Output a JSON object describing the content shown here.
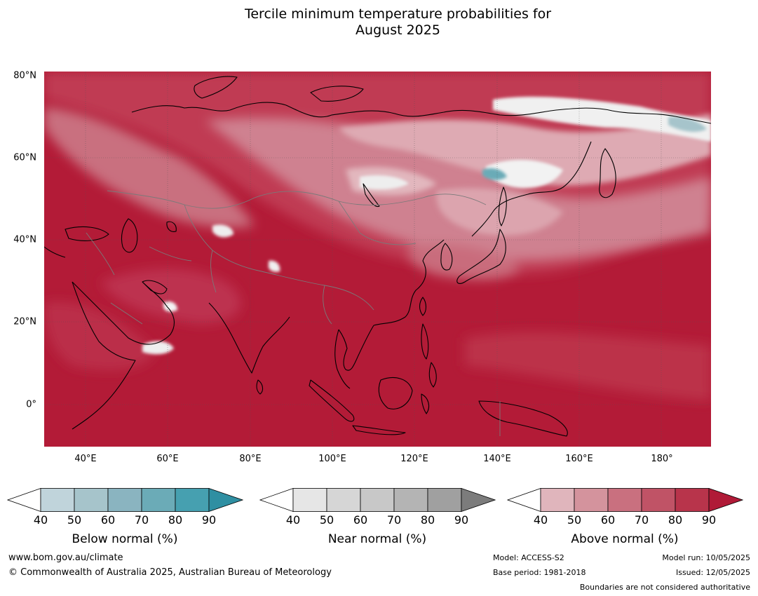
{
  "title_line1": "Tercile minimum temperature probabilities for",
  "title_line2": "August 2025",
  "lat_labels": [
    "80°N",
    "60°N",
    "40°N",
    "20°N",
    "0°"
  ],
  "lon_labels": [
    "40°E",
    "60°E",
    "80°E",
    "100°E",
    "120°E",
    "140°E",
    "160°E",
    "180°"
  ],
  "colorbars": {
    "below": {
      "label": "Below normal (%)",
      "ticks": [
        "40",
        "50",
        "60",
        "70",
        "80",
        "90"
      ],
      "colors": [
        "#ffffff",
        "#c0d4db",
        "#a6c4cb",
        "#8ab4c0",
        "#6babb7",
        "#46a0b0",
        "#2f8fa2"
      ]
    },
    "near": {
      "label": "Near normal (%)",
      "ticks": [
        "40",
        "50",
        "60",
        "70",
        "80",
        "90"
      ],
      "colors": [
        "#ffffff",
        "#e6e6e6",
        "#d6d6d6",
        "#c8c8c8",
        "#b4b4b4",
        "#a0a0a0",
        "#7c7c7c"
      ]
    },
    "above": {
      "label": "Above normal (%)",
      "ticks": [
        "40",
        "50",
        "60",
        "70",
        "80",
        "90"
      ],
      "colors": [
        "#ffffff",
        "#e0b5bc",
        "#d4939d",
        "#c9707f",
        "#c05366",
        "#b8344b",
        "#b01a37"
      ]
    }
  },
  "footer": {
    "website": "www.bom.gov.au/climate",
    "copyright": "© Commonwealth of Australia 2025, Australian Bureau of Meteorology",
    "model": "Model: ACCESS-S2",
    "base_period": "Base period: 1981-2018",
    "model_run": "Model run: 10/05/2025",
    "issued": "Issued: 12/05/2025",
    "disclaimer": "Boundaries are not considered authoritative"
  }
}
